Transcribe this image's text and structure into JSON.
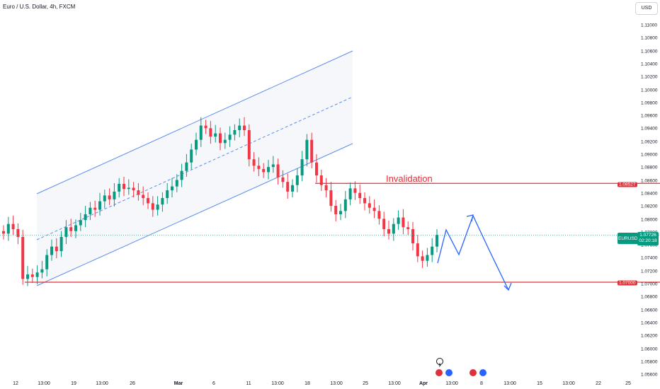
{
  "header": {
    "title": "Euro / U.S. Dollar, 4h, FXCM",
    "currency_button": "USD"
  },
  "y_axis": {
    "ticks": [
      "1.11000",
      "1.10800",
      "1.10600",
      "1.10400",
      "1.10200",
      "1.10000",
      "1.09800",
      "1.09600",
      "1.09400",
      "1.09200",
      "1.09000",
      "1.08800",
      "1.08600",
      "1.08400",
      "1.08200",
      "1.08000",
      "1.07800",
      "1.07600",
      "1.07400",
      "1.07200",
      "1.07000",
      "1.06800",
      "1.06600",
      "1.06400",
      "1.06200",
      "1.06000",
      "1.05800",
      "1.05600"
    ]
  },
  "x_axis": {
    "ticks": [
      {
        "label": "12",
        "bold": false
      },
      {
        "label": "13:00",
        "bold": false
      },
      {
        "label": "19",
        "bold": false
      },
      {
        "label": "13:00",
        "bold": false
      },
      {
        "label": "26",
        "bold": false
      },
      {
        "label": "Mar",
        "bold": true
      },
      {
        "label": "6",
        "bold": false
      },
      {
        "label": "11",
        "bold": false
      },
      {
        "label": "13:00",
        "bold": false
      },
      {
        "label": "18",
        "bold": false
      },
      {
        "label": "13:00",
        "bold": false
      },
      {
        "label": "25",
        "bold": false
      },
      {
        "label": "13:00",
        "bold": false
      },
      {
        "label": "Apr",
        "bold": true
      },
      {
        "label": "13:00",
        "bold": false
      },
      {
        "label": "8",
        "bold": false
      },
      {
        "label": "13:00",
        "bold": false
      },
      {
        "label": "15",
        "bold": false
      },
      {
        "label": "13:00",
        "bold": false
      },
      {
        "label": "22",
        "bold": false
      },
      {
        "label": "25",
        "bold": false
      }
    ]
  },
  "annotations": {
    "invalidation_label": "Invalidation",
    "invalidation_price": "1.08527",
    "target_price": "1.07000"
  },
  "current_price": {
    "symbol": "EURUSD",
    "price": "1.07726",
    "countdown": "02:20:18"
  },
  "colors": {
    "up": "#089981",
    "down": "#f23645",
    "level": "#e0303a",
    "channel": "#5b8def",
    "projection": "#2962ff"
  },
  "chart_data": {
    "type": "candlestick",
    "title": "Euro / U.S. Dollar, 4h, FXCM",
    "ylim": [
      1.055,
      1.112
    ],
    "closes": [
      1.0775,
      1.079,
      1.0782,
      1.077,
      1.0705,
      1.0712,
      1.0708,
      1.0715,
      1.072,
      1.0742,
      1.0755,
      1.0748,
      1.077,
      1.0785,
      1.0779,
      1.0788,
      1.0796,
      1.0805,
      1.0815,
      1.0812,
      1.0825,
      1.0834,
      1.0828,
      1.084,
      1.0852,
      1.0844,
      1.0846,
      1.0842,
      1.0835,
      1.083,
      1.0822,
      1.0812,
      1.082,
      1.083,
      1.0842,
      1.0848,
      1.0858,
      1.0872,
      1.0885,
      1.0905,
      1.092,
      1.0942,
      1.0938,
      1.0925,
      1.093,
      1.0915,
      1.092,
      1.0928,
      1.0935,
      1.0942,
      1.0935,
      1.089,
      1.088,
      1.0875,
      1.087,
      1.0878,
      1.0882,
      1.0862,
      1.0855,
      1.084,
      1.085,
      1.0865,
      1.089,
      1.092,
      1.0885,
      1.0865,
      1.085,
      1.0842,
      1.0818,
      1.0805,
      1.081,
      1.0828,
      1.0845,
      1.0838,
      1.083,
      1.0822,
      1.0815,
      1.081,
      1.0798,
      1.0782,
      1.0775,
      1.079,
      1.08,
      1.0785,
      1.0782,
      1.076,
      1.074,
      1.0733,
      1.0742,
      1.0755,
      1.0773
    ],
    "levels": [
      {
        "label": "Invalidation",
        "price": 1.08527
      },
      {
        "label": "",
        "price": 1.07
      }
    ],
    "current_price": 1.07726
  }
}
